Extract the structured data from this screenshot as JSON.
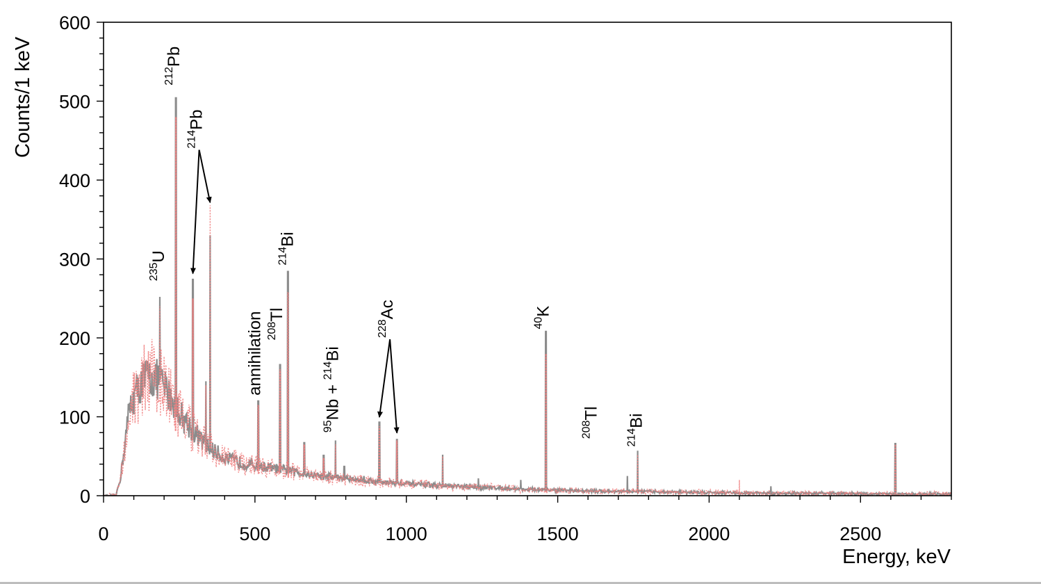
{
  "chart_data": {
    "type": "line",
    "title": "",
    "xlabel": "Energy, keV",
    "ylabel": "Counts/1  keV",
    "xlim": [
      0,
      2800
    ],
    "ylim": [
      0,
      600
    ],
    "x_ticks": [
      0,
      500,
      1000,
      1500,
      2000,
      2500
    ],
    "x_tick_labels": [
      "0",
      "500",
      "1000",
      "1500",
      "2000",
      "2500"
    ],
    "y_ticks": [
      0,
      100,
      200,
      300,
      400,
      500,
      600
    ],
    "y_tick_labels": [
      "0",
      "100",
      "200",
      "300",
      "400",
      "500",
      "600"
    ],
    "grid": false,
    "legend": "none",
    "colors": {
      "series_a": "#8c8c8c",
      "series_b": "#f08080",
      "axis": "#000000"
    },
    "continuum": {
      "x": [
        40,
        55,
        70,
        85,
        100,
        120,
        140,
        160,
        180,
        200,
        230,
        260,
        300,
        350,
        400,
        450,
        500,
        600,
        700,
        800,
        900,
        1000,
        1100,
        1200,
        1300,
        1400,
        1500,
        1600,
        1800,
        2000,
        2200,
        2400,
        2600,
        2800
      ],
      "y": [
        0,
        20,
        65,
        110,
        125,
        140,
        150,
        150,
        145,
        138,
        120,
        100,
        80,
        60,
        48,
        42,
        38,
        32,
        26,
        22,
        18,
        15,
        13,
        11,
        10,
        8,
        7,
        6,
        5,
        4,
        3,
        3,
        2,
        2
      ]
    },
    "series": [
      {
        "style": "solid",
        "peaks": [
          {
            "x": 186,
            "y": 252
          },
          {
            "x": 239,
            "y": 505
          },
          {
            "x": 295,
            "y": 275
          },
          {
            "x": 338,
            "y": 145
          },
          {
            "x": 352,
            "y": 330
          },
          {
            "x": 511,
            "y": 121
          },
          {
            "x": 583,
            "y": 167
          },
          {
            "x": 609,
            "y": 285
          },
          {
            "x": 663,
            "y": 68
          },
          {
            "x": 727,
            "y": 52
          },
          {
            "x": 766,
            "y": 70
          },
          {
            "x": 795,
            "y": 38
          },
          {
            "x": 860,
            "y": 25
          },
          {
            "x": 911,
            "y": 94
          },
          {
            "x": 969,
            "y": 72
          },
          {
            "x": 1120,
            "y": 52
          },
          {
            "x": 1238,
            "y": 22
          },
          {
            "x": 1378,
            "y": 20
          },
          {
            "x": 1461,
            "y": 209
          },
          {
            "x": 1730,
            "y": 25
          },
          {
            "x": 1764,
            "y": 57
          },
          {
            "x": 2204,
            "y": 12
          },
          {
            "x": 2615,
            "y": 67
          }
        ]
      },
      {
        "style": "dotted",
        "peaks": [
          {
            "x": 186,
            "y": 240
          },
          {
            "x": 239,
            "y": 480
          },
          {
            "x": 295,
            "y": 250
          },
          {
            "x": 338,
            "y": 140
          },
          {
            "x": 352,
            "y": 368
          },
          {
            "x": 511,
            "y": 115
          },
          {
            "x": 583,
            "y": 160
          },
          {
            "x": 609,
            "y": 258
          },
          {
            "x": 663,
            "y": 65
          },
          {
            "x": 727,
            "y": 48
          },
          {
            "x": 766,
            "y": 65
          },
          {
            "x": 911,
            "y": 88
          },
          {
            "x": 969,
            "y": 70
          },
          {
            "x": 1120,
            "y": 50
          },
          {
            "x": 1461,
            "y": 180
          },
          {
            "x": 1764,
            "y": 52
          },
          {
            "x": 2100,
            "y": 20
          },
          {
            "x": 2615,
            "y": 65
          }
        ]
      }
    ],
    "annotations": [
      {
        "sup": "235",
        "base": "U",
        "x": 200,
        "y": 272,
        "arrow_to": []
      },
      {
        "sup": "212",
        "base": "Pb",
        "x": 250,
        "y": 520,
        "arrow_to": []
      },
      {
        "sup": "214",
        "base": "Pb",
        "x": 325,
        "y": 440,
        "arrow_to": [
          {
            "x": 295,
            "y": 278
          },
          {
            "x": 352,
            "y": 368
          }
        ]
      },
      {
        "sup": "",
        "base": "annihilation",
        "x": 518,
        "y": 127,
        "arrow_to": []
      },
      {
        "sup": "208",
        "base": "Tl",
        "x": 590,
        "y": 197,
        "arrow_to": []
      },
      {
        "sup": "214",
        "base": "Bi",
        "x": 625,
        "y": 292,
        "arrow_to": []
      },
      {
        "sup": "95",
        "base": "Nb + ",
        "sup2": "214",
        "base2": "Bi",
        "x": 775,
        "y": 80,
        "arrow_to": []
      },
      {
        "sup": "228",
        "base": "Ac",
        "x": 955,
        "y": 200,
        "arrow_to": [
          {
            "x": 911,
            "y": 96
          },
          {
            "x": 969,
            "y": 76
          }
        ]
      },
      {
        "sup": "40",
        "base": "K",
        "x": 1470,
        "y": 211,
        "arrow_to": []
      },
      {
        "sup": "214",
        "base": "Bi",
        "x": 1778,
        "y": 62,
        "arrow_to": []
      },
      {
        "sup": "208",
        "base": "Tl",
        "x": 1628,
        "y": 72,
        "arrow_to": []
      }
    ]
  }
}
